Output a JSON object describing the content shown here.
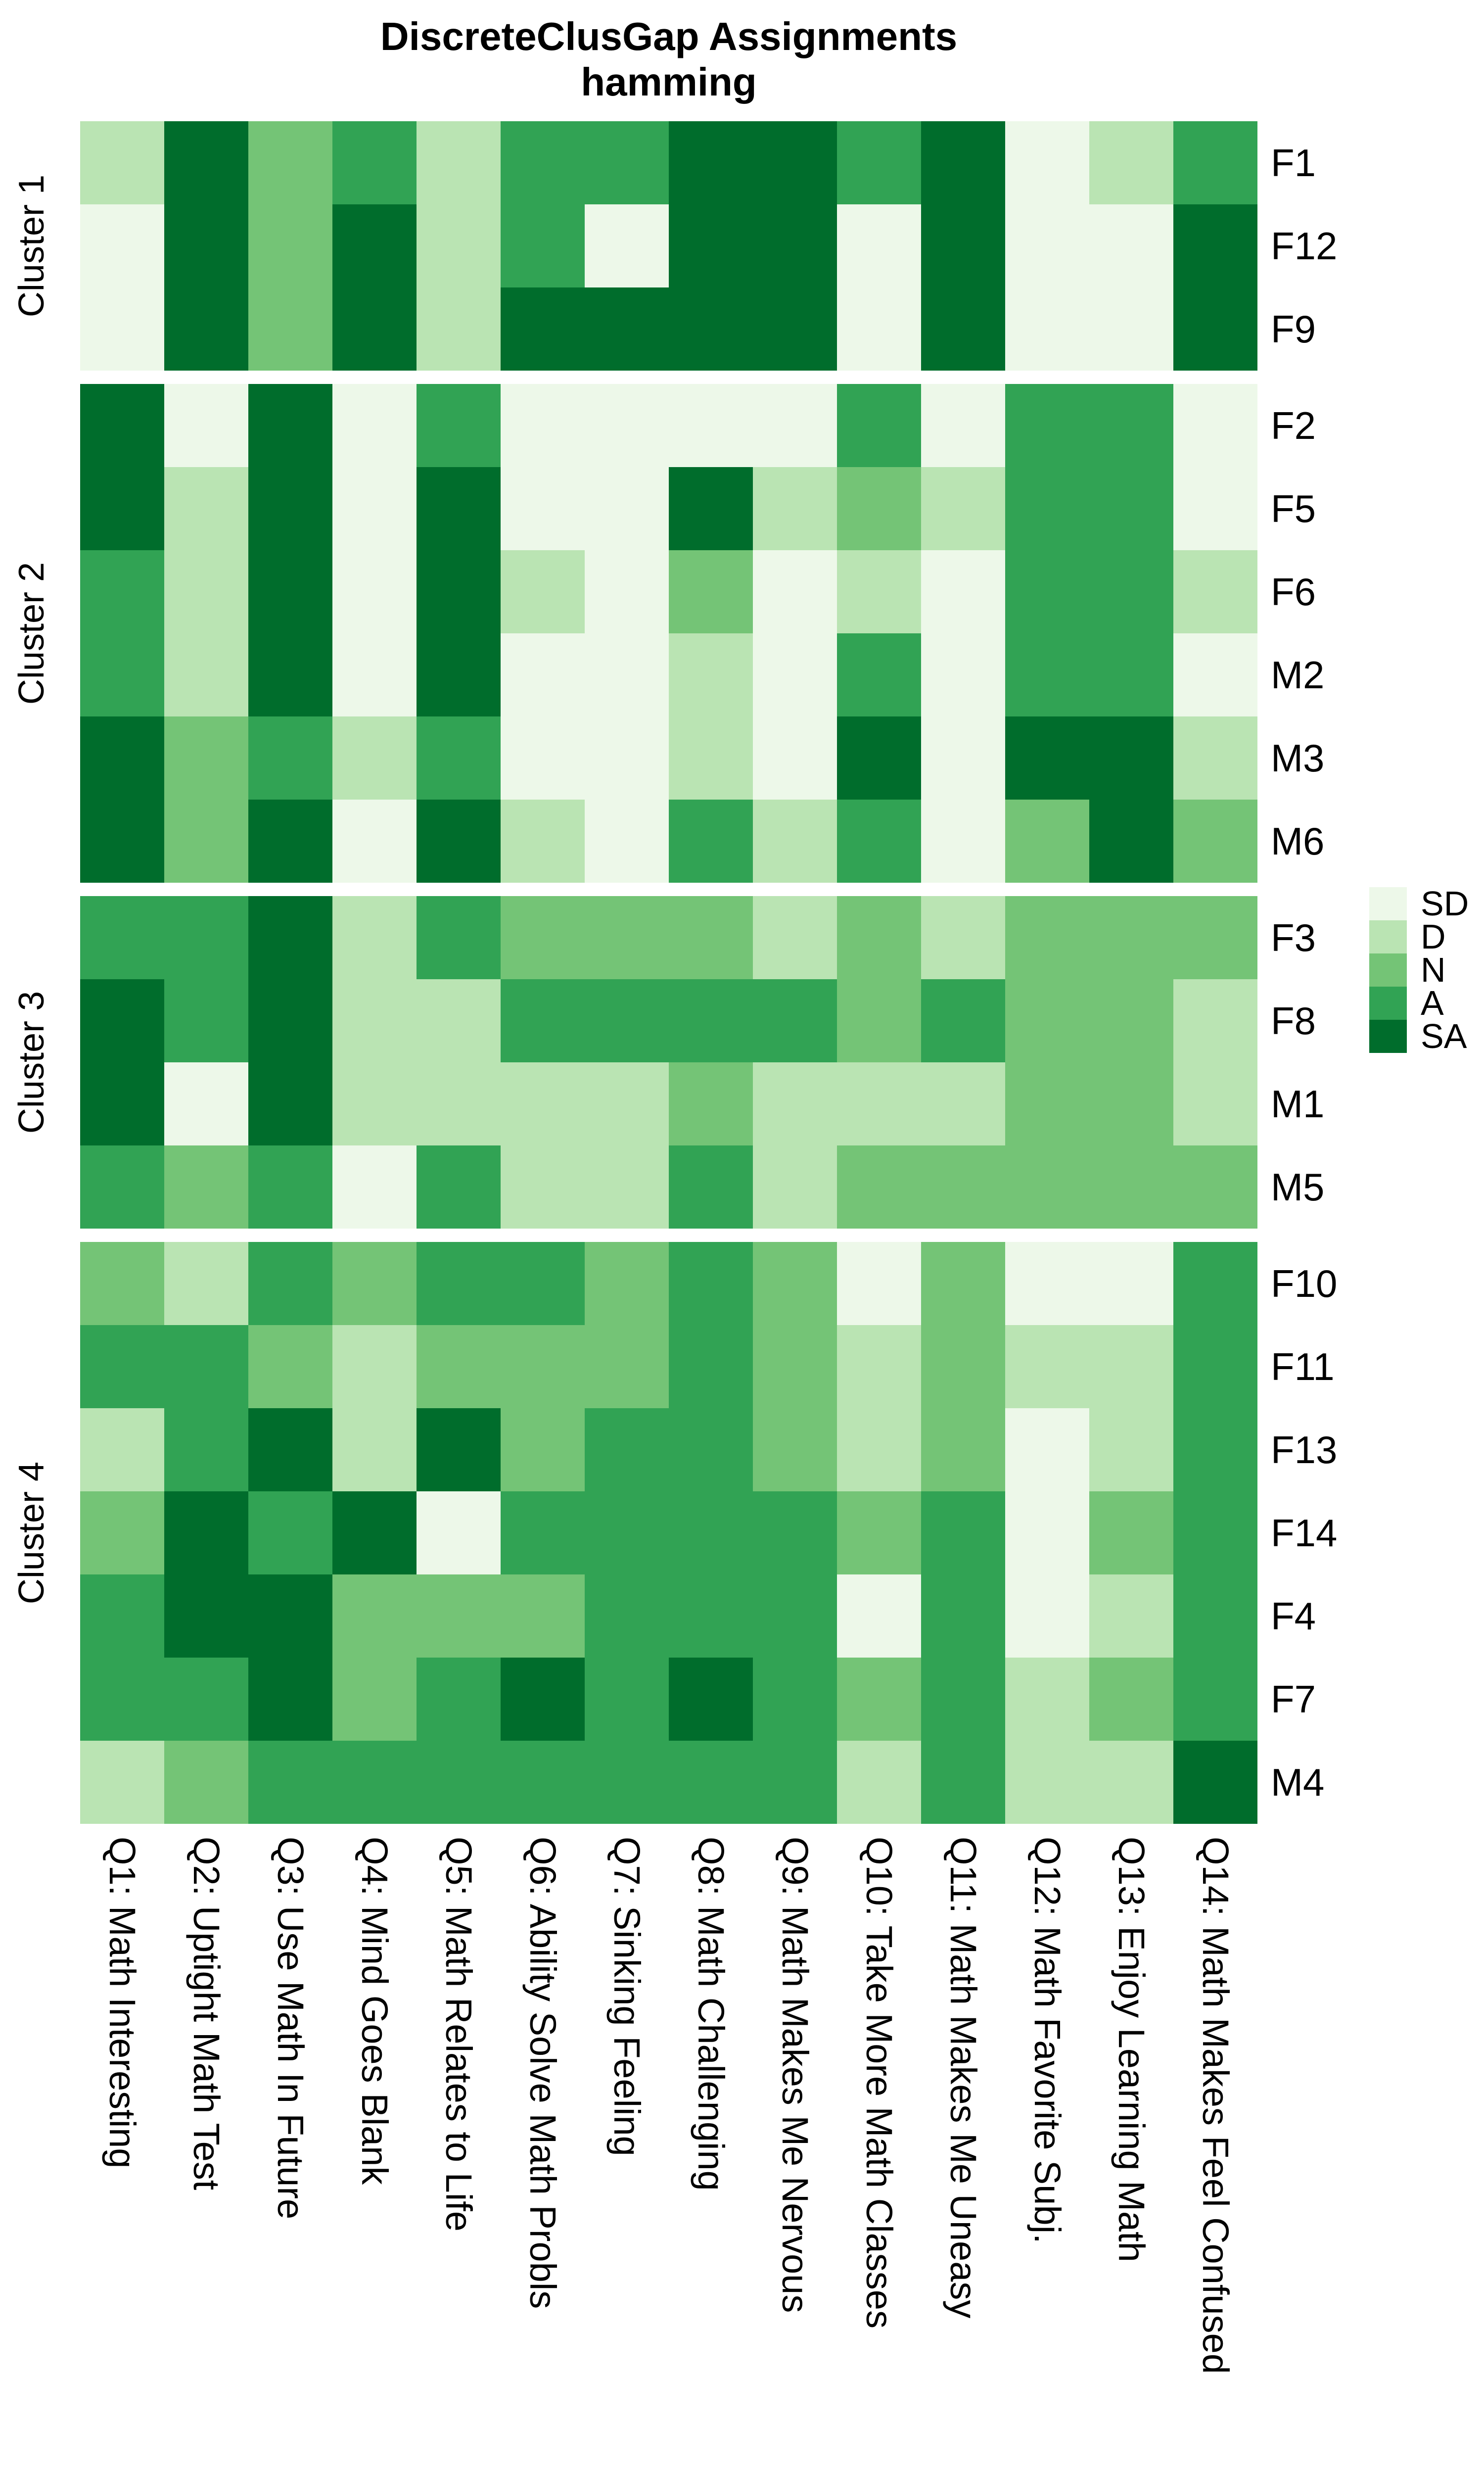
{
  "chart_data": {
    "type": "heatmap",
    "title": "DiscreteClusGap Assignments",
    "subtitle": "hamming",
    "legend_position": "right-middle",
    "grid": "off",
    "value_levels": [
      "SD",
      "D",
      "N",
      "A",
      "SA"
    ],
    "palette": {
      "SD": "#EDF8E9",
      "D": "#BAE4B3",
      "N": "#74C476",
      "A": "#31A354",
      "SA": "#006D2C"
    },
    "x_categories": [
      "Q1: Math Interesting",
      "Q2: Uptight Math Test",
      "Q3: Use Math In Future",
      "Q4: Mind Goes Blank",
      "Q5: Math Relates to Life",
      "Q6: Ability Solve Math Probls",
      "Q7: Sinking Feeling",
      "Q8: Math Challenging",
      "Q9: Math Makes Me Nervous",
      "Q10: Take More Math Classes",
      "Q11: Math Makes Me Uneasy",
      "Q12: Math Favorite Subj.",
      "Q13: Enjoy Learning Math",
      "Q14: Math Makes Feel Confused"
    ],
    "clusters": [
      {
        "label": "Cluster 1",
        "rows": [
          {
            "label": "F1",
            "values": [
              "D",
              "SA",
              "N",
              "A",
              "D",
              "A",
              "A",
              "SA",
              "SA",
              "A",
              "SA",
              "SD",
              "D",
              "A"
            ]
          },
          {
            "label": "F12",
            "values": [
              "SD",
              "SA",
              "N",
              "SA",
              "D",
              "A",
              "SD",
              "SA",
              "SA",
              "SD",
              "SA",
              "SD",
              "SD",
              "SA"
            ]
          },
          {
            "label": "F9",
            "values": [
              "SD",
              "SA",
              "N",
              "SA",
              "D",
              "SA",
              "SA",
              "SA",
              "SA",
              "SD",
              "SA",
              "SD",
              "SD",
              "SA"
            ]
          }
        ]
      },
      {
        "label": "Cluster 2",
        "rows": [
          {
            "label": "F2",
            "values": [
              "SA",
              "SD",
              "SA",
              "SD",
              "A",
              "SD",
              "SD",
              "SD",
              "SD",
              "A",
              "SD",
              "A",
              "A",
              "SD"
            ]
          },
          {
            "label": "F5",
            "values": [
              "SA",
              "D",
              "SA",
              "SD",
              "SA",
              "SD",
              "SD",
              "SA",
              "D",
              "N",
              "D",
              "A",
              "A",
              "SD"
            ]
          },
          {
            "label": "F6",
            "values": [
              "A",
              "D",
              "SA",
              "SD",
              "SA",
              "D",
              "SD",
              "N",
              "SD",
              "D",
              "SD",
              "A",
              "A",
              "D"
            ]
          },
          {
            "label": "M2",
            "values": [
              "A",
              "D",
              "SA",
              "SD",
              "SA",
              "SD",
              "SD",
              "D",
              "SD",
              "A",
              "SD",
              "A",
              "A",
              "SD"
            ]
          },
          {
            "label": "M3",
            "values": [
              "SA",
              "N",
              "A",
              "D",
              "A",
              "SD",
              "SD",
              "D",
              "SD",
              "SA",
              "SD",
              "SA",
              "SA",
              "D"
            ]
          },
          {
            "label": "M6",
            "values": [
              "SA",
              "N",
              "SA",
              "SD",
              "SA",
              "D",
              "SD",
              "A",
              "D",
              "A",
              "SD",
              "N",
              "SA",
              "N"
            ]
          }
        ]
      },
      {
        "label": "Cluster 3",
        "rows": [
          {
            "label": "F3",
            "values": [
              "A",
              "A",
              "SA",
              "D",
              "A",
              "N",
              "N",
              "N",
              "D",
              "N",
              "D",
              "N",
              "N",
              "N"
            ]
          },
          {
            "label": "F8",
            "values": [
              "SA",
              "A",
              "SA",
              "D",
              "D",
              "A",
              "A",
              "A",
              "A",
              "N",
              "A",
              "N",
              "N",
              "D"
            ]
          },
          {
            "label": "M1",
            "values": [
              "SA",
              "SD",
              "SA",
              "D",
              "D",
              "D",
              "D",
              "N",
              "D",
              "D",
              "D",
              "N",
              "N",
              "D"
            ]
          },
          {
            "label": "M5",
            "values": [
              "A",
              "N",
              "A",
              "SD",
              "A",
              "D",
              "D",
              "A",
              "D",
              "N",
              "N",
              "N",
              "N",
              "N"
            ]
          }
        ]
      },
      {
        "label": "Cluster 4",
        "rows": [
          {
            "label": "F10",
            "values": [
              "N",
              "D",
              "A",
              "N",
              "A",
              "A",
              "N",
              "A",
              "N",
              "SD",
              "N",
              "SD",
              "SD",
              "A"
            ]
          },
          {
            "label": "F11",
            "values": [
              "A",
              "A",
              "N",
              "D",
              "N",
              "N",
              "N",
              "A",
              "N",
              "D",
              "N",
              "D",
              "D",
              "A"
            ]
          },
          {
            "label": "F13",
            "values": [
              "D",
              "A",
              "SA",
              "D",
              "SA",
              "N",
              "A",
              "A",
              "N",
              "D",
              "N",
              "SD",
              "D",
              "A"
            ]
          },
          {
            "label": "F14",
            "values": [
              "N",
              "SA",
              "A",
              "SA",
              "SD",
              "A",
              "A",
              "A",
              "A",
              "N",
              "A",
              "SD",
              "N",
              "A"
            ]
          },
          {
            "label": "F4",
            "values": [
              "A",
              "SA",
              "SA",
              "N",
              "N",
              "N",
              "A",
              "A",
              "A",
              "SD",
              "A",
              "SD",
              "D",
              "A"
            ]
          },
          {
            "label": "F7",
            "values": [
              "A",
              "A",
              "SA",
              "N",
              "A",
              "SA",
              "A",
              "SA",
              "A",
              "N",
              "A",
              "D",
              "N",
              "A"
            ]
          },
          {
            "label": "M4",
            "values": [
              "D",
              "N",
              "A",
              "A",
              "A",
              "A",
              "A",
              "A",
              "A",
              "D",
              "A",
              "D",
              "D",
              "SA"
            ]
          }
        ]
      }
    ],
    "legend": [
      {
        "code": "SD"
      },
      {
        "code": "D"
      },
      {
        "code": "N"
      },
      {
        "code": "A"
      },
      {
        "code": "SA"
      }
    ]
  }
}
